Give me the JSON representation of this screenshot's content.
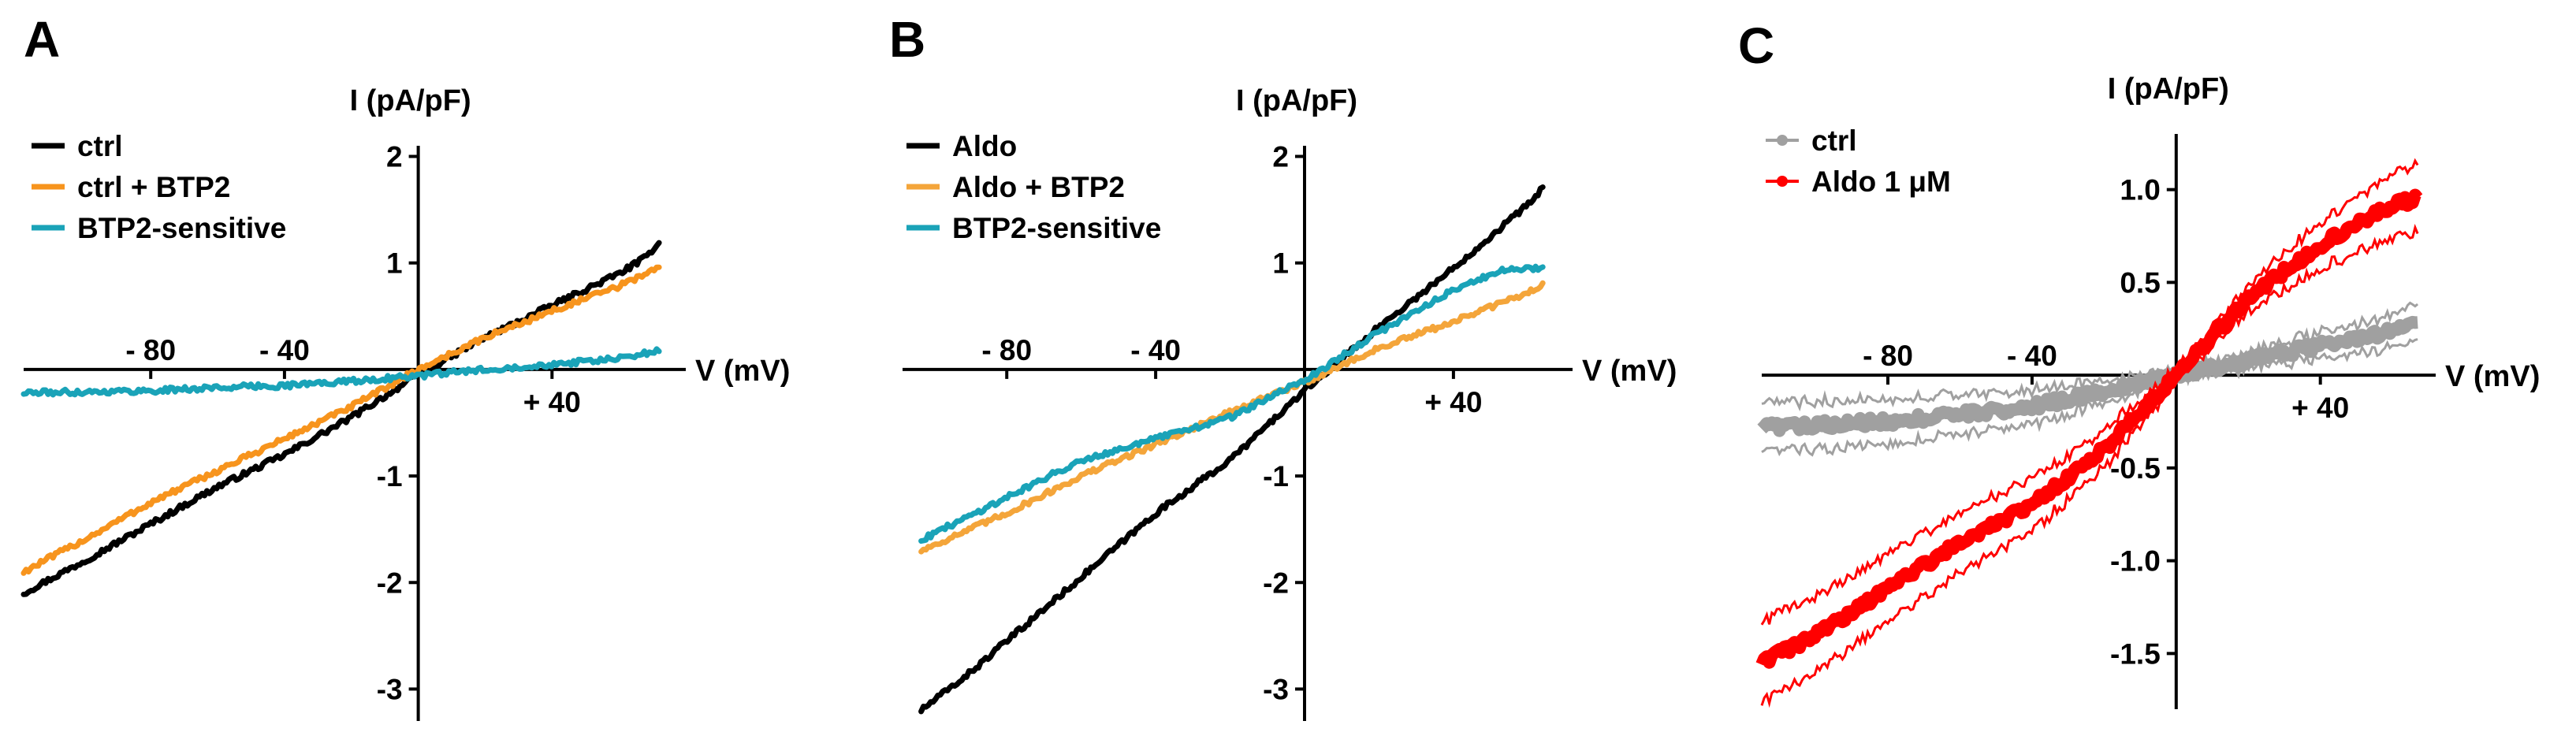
{
  "chart_data": [
    {
      "panel": "A",
      "type": "line",
      "xlabel": "V (mV)",
      "ylabel": "I (pA/pF)",
      "xlim": [
        -118,
        80
      ],
      "ylim": [
        -3.3,
        2.1
      ],
      "x_ticks": [
        -80,
        -40,
        40
      ],
      "x_tick_labels": [
        "- 80",
        "- 40",
        "+ 40"
      ],
      "y_ticks": [
        2,
        1,
        -1,
        -2,
        -3
      ],
      "y_tick_labels": [
        "2",
        "1",
        "-1",
        "-2",
        "-3"
      ],
      "legend": [
        "ctrl",
        "ctrl + BTP2",
        "BTP2-sensitive"
      ],
      "series": [
        {
          "name": "ctrl",
          "color": "#000000",
          "x": [
            -118,
            -100,
            -80,
            -60,
            -40,
            -20,
            0,
            20,
            40,
            60,
            68,
            72
          ],
          "y": [
            -2.1,
            -1.8,
            -1.45,
            -1.1,
            -0.8,
            -0.45,
            -0.05,
            0.3,
            0.6,
            0.9,
            1.05,
            1.2
          ]
        },
        {
          "name": "ctrl + BTP2",
          "color": "#f7941d",
          "x": [
            -118,
            -100,
            -80,
            -60,
            -40,
            -20,
            0,
            20,
            40,
            60,
            68,
            72
          ],
          "y": [
            -1.9,
            -1.6,
            -1.25,
            -0.95,
            -0.65,
            -0.35,
            0.0,
            0.3,
            0.55,
            0.78,
            0.9,
            0.97
          ]
        },
        {
          "name": "BTP2-sensitive",
          "color": "#1aa3b8",
          "x": [
            -118,
            -100,
            -80,
            -60,
            -40,
            -20,
            0,
            20,
            40,
            60,
            72
          ],
          "y": [
            -0.22,
            -0.21,
            -0.2,
            -0.17,
            -0.15,
            -0.11,
            -0.06,
            0.0,
            0.05,
            0.1,
            0.18
          ]
        }
      ]
    },
    {
      "panel": "B",
      "type": "line",
      "xlabel": "V (mV)",
      "ylabel": "I (pA/pF)",
      "xlim": [
        -108,
        72
      ],
      "ylim": [
        -3.3,
        2.1
      ],
      "x_ticks": [
        -80,
        -40,
        40
      ],
      "x_tick_labels": [
        "- 80",
        "- 40",
        "+ 40"
      ],
      "y_ticks": [
        2,
        1,
        -1,
        -2,
        -3
      ],
      "y_tick_labels": [
        "2",
        "1",
        "-1",
        "-2",
        "-3"
      ],
      "legend": [
        "Aldo",
        "Aldo + BTP2",
        "BTP2-sensitive"
      ],
      "series": [
        {
          "name": "Aldo",
          "color": "#000000",
          "x": [
            -103,
            -90,
            -80,
            -60,
            -40,
            -20,
            0,
            10,
            20,
            40,
            60,
            64
          ],
          "y": [
            -3.2,
            -2.85,
            -2.55,
            -1.95,
            -1.35,
            -0.85,
            -0.2,
            0.1,
            0.4,
            0.95,
            1.55,
            1.7
          ]
        },
        {
          "name": "Aldo + BTP2",
          "color": "#f4a53a",
          "x": [
            -103,
            -80,
            -60,
            -40,
            -20,
            0,
            20,
            40,
            60,
            64
          ],
          "y": [
            -1.7,
            -1.35,
            -1.0,
            -0.7,
            -0.4,
            -0.12,
            0.2,
            0.45,
            0.72,
            0.8
          ]
        },
        {
          "name": "BTP2-sensitive",
          "color": "#1aa3b8",
          "x": [
            -103,
            -80,
            -60,
            -40,
            -20,
            0,
            20,
            40,
            55,
            64
          ],
          "y": [
            -1.6,
            -1.2,
            -0.85,
            -0.65,
            -0.45,
            -0.1,
            0.35,
            0.75,
            0.95,
            0.95
          ]
        }
      ]
    },
    {
      "panel": "C",
      "type": "line",
      "xlabel": "V (mV)",
      "ylabel": "I (pA/pF)",
      "xlim": [
        -115,
        72
      ],
      "ylim": [
        -1.8,
        1.3
      ],
      "x_ticks": [
        -80,
        -40,
        40
      ],
      "x_tick_labels": [
        "- 80",
        "- 40",
        "+ 40"
      ],
      "y_ticks": [
        1.0,
        0.5,
        -0.5,
        -1.0,
        -1.5
      ],
      "y_tick_labels": [
        "1.0",
        "0.5",
        "-0.5",
        "-1.0",
        "-1.5"
      ],
      "legend": [
        "ctrl",
        "Aldo 1 μM"
      ],
      "series": [
        {
          "name": "ctrl",
          "color": "#a0a0a0",
          "x": [
            -115,
            -80,
            -40,
            0,
            20,
            40,
            60,
            67
          ],
          "y": [
            -0.28,
            -0.25,
            -0.17,
            0.0,
            0.08,
            0.16,
            0.24,
            0.27
          ],
          "sem": [
            0.13,
            0.12,
            0.09,
            0.03,
            0.04,
            0.07,
            0.09,
            0.1
          ]
        },
        {
          "name": "Aldo 1 μM",
          "color": "#ff0000",
          "x": [
            -115,
            -100,
            -80,
            -60,
            -40,
            -20,
            0,
            20,
            40,
            60,
            67
          ],
          "y": [
            -1.55,
            -1.4,
            -1.15,
            -0.9,
            -0.7,
            -0.4,
            0.0,
            0.42,
            0.7,
            0.92,
            0.95
          ],
          "sem": [
            0.22,
            0.2,
            0.18,
            0.16,
            0.14,
            0.1,
            0.03,
            0.07,
            0.13,
            0.17,
            0.18
          ]
        }
      ]
    }
  ]
}
